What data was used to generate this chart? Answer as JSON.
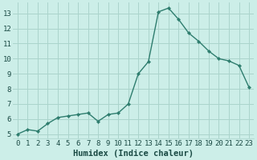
{
  "x": [
    0,
    1,
    2,
    3,
    4,
    5,
    6,
    7,
    8,
    9,
    10,
    11,
    12,
    13,
    14,
    15,
    16,
    17,
    18,
    19,
    20,
    21,
    22,
    23
  ],
  "y": [
    5.0,
    5.3,
    5.2,
    5.7,
    6.1,
    6.2,
    6.3,
    6.4,
    5.85,
    6.3,
    6.4,
    7.0,
    9.0,
    9.8,
    13.1,
    13.35,
    12.6,
    11.7,
    11.15,
    10.5,
    10.0,
    9.85,
    9.55,
    8.1
  ],
  "line_color": "#2e7d6e",
  "marker_color": "#2e7d6e",
  "bg_color": "#cceee8",
  "grid_color": "#aad4cc",
  "xlabel": "Humidex (Indice chaleur)",
  "xlim": [
    -0.5,
    23.5
  ],
  "ylim": [
    4.7,
    13.7
  ],
  "yticks": [
    5,
    6,
    7,
    8,
    9,
    10,
    11,
    12,
    13
  ],
  "xticks": [
    0,
    1,
    2,
    3,
    4,
    5,
    6,
    7,
    8,
    9,
    10,
    11,
    12,
    13,
    14,
    15,
    16,
    17,
    18,
    19,
    20,
    21,
    22,
    23
  ],
  "tick_fontsize": 6.5,
  "xlabel_fontsize": 7.5,
  "font_color": "#1a4a44"
}
